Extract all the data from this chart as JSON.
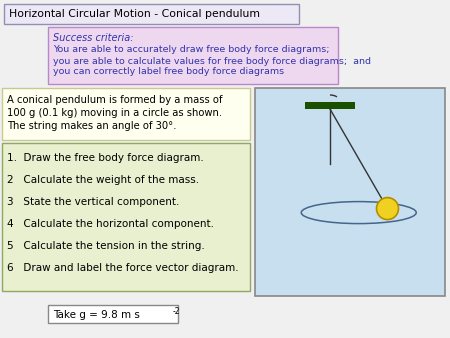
{
  "title": "Horizontal Circular Motion - Conical pendulum",
  "title_bg": "#ede8f5",
  "title_border": "#9090b0",
  "success_criteria_title": "Success criteria:",
  "success_criteria_lines": [
    "You are able to accurately draw free body force diagrams;",
    "you are able to calculate values for free body force diagrams;  and",
    "you can correctly label free body force diagrams"
  ],
  "success_bg": "#eed8f0",
  "success_border": "#b888c8",
  "problem_lines": [
    "A conical pendulum is formed by a mass of",
    "100 g (0.1 kg) moving in a circle as shown.",
    "The string makes an angle of 30°."
  ],
  "problem_bg": "#fffff0",
  "problem_border": "#c8c890",
  "tasks": [
    "1.  Draw the free body force diagram.",
    "2   Calculate the weight of the mass.",
    "3   State the vertical component.",
    "4   Calculate the horizontal component.",
    "5   Calculate the tension in the string.",
    "6   Draw and label the force vector diagram."
  ],
  "tasks_bg": "#e8f0d0",
  "tasks_border": "#90a860",
  "g_text": "Take g = 9.8 m s",
  "g_sup": "-2",
  "g_bg": "#ffffff",
  "g_border": "#888888",
  "page_bg": "#f0f0f0",
  "diagram_bg": "#c8dff0",
  "diagram_border": "#888888",
  "pivot_color": "#1a5000",
  "string_color": "#333333",
  "ball_color": "#f0d020",
  "ball_border": "#b09000",
  "ellipse_color": "#446688",
  "success_text_color": "#3333aa"
}
